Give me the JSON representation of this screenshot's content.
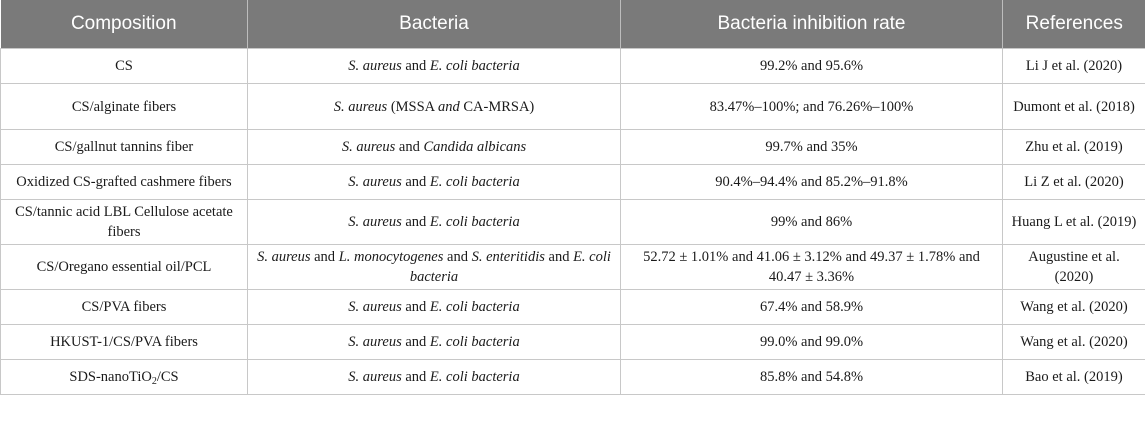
{
  "headers": [
    "Composition",
    "Bacteria",
    "Bacteria inhibition rate",
    "References"
  ],
  "rows": [
    {
      "composition": "CS",
      "bacteria": [
        {
          "t": "S. aureus",
          "i": true
        },
        {
          "t": " and ",
          "i": false
        },
        {
          "t": "E. coli bacteria",
          "i": true
        }
      ],
      "rate": "99.2% and 95.6%",
      "ref": "Li J et al. (2020)"
    },
    {
      "composition": "CS/alginate fibers",
      "bacteria": [
        {
          "t": "S. aureus",
          "i": true
        },
        {
          "t": " (MSSA ",
          "i": false
        },
        {
          "t": "and",
          "i": true
        },
        {
          "t": " CA-MRSA)",
          "i": false
        }
      ],
      "rate": "83.47%–100%; and 76.26%–100%",
      "ref": "Dumont et al. (2018)"
    },
    {
      "composition": "CS/gallnut tannins fiber",
      "bacteria": [
        {
          "t": "S. aureus",
          "i": true
        },
        {
          "t": " and ",
          "i": false
        },
        {
          "t": "Candida albicans",
          "i": true
        }
      ],
      "rate": "99.7% and 35%",
      "ref": "Zhu et al. (2019)"
    },
    {
      "composition": "Oxidized CS-grafted cashmere fibers",
      "bacteria": [
        {
          "t": "S. aureus",
          "i": true
        },
        {
          "t": " and ",
          "i": false
        },
        {
          "t": "E. coli bacteria",
          "i": true
        }
      ],
      "rate": "90.4%–94.4% and 85.2%–91.8%",
      "ref": "Li Z et al. (2020)"
    },
    {
      "composition": "CS/tannic acid LBL Cellulose acetate fibers",
      "bacteria": [
        {
          "t": "S. aureus",
          "i": true
        },
        {
          "t": " and ",
          "i": false
        },
        {
          "t": "E. coli bacteria",
          "i": true
        }
      ],
      "rate": "99% and 86%",
      "ref": "Huang L et al. (2019)"
    },
    {
      "composition": "CS/Oregano essential oil/PCL",
      "bacteria": [
        {
          "t": "S. aureus",
          "i": true
        },
        {
          "t": " and ",
          "i": false
        },
        {
          "t": "L. monocytogenes",
          "i": true
        },
        {
          "t": " and ",
          "i": false
        },
        {
          "t": "S. enteritidis",
          "i": true
        },
        {
          "t": " and ",
          "i": false
        },
        {
          "t": "E. coli bacteria",
          "i": true
        }
      ],
      "rate": "52.72 ± 1.01% and 41.06 ± 3.12% and 49.37 ± 1.78% and 40.47 ± 3.36%",
      "ref": "Augustine et al. (2020)"
    },
    {
      "composition": "CS/PVA fibers",
      "bacteria": [
        {
          "t": "S. aureus",
          "i": true
        },
        {
          "t": " and ",
          "i": false
        },
        {
          "t": "E. coli bacteria",
          "i": true
        }
      ],
      "rate": "67.4% and 58.9%",
      "ref": "Wang et al. (2020)"
    },
    {
      "composition": "HKUST-1/CS/PVA fibers",
      "bacteria": [
        {
          "t": "S. aureus",
          "i": true
        },
        {
          "t": " and ",
          "i": false
        },
        {
          "t": "E. coli bacteria",
          "i": true
        }
      ],
      "rate": "99.0% and 99.0%",
      "ref": "Wang et al. (2020)"
    },
    {
      "composition_parts": [
        "SDS-nanoTiO",
        "2",
        "/CS"
      ],
      "bacteria": [
        {
          "t": "S. aureus",
          "i": true
        },
        {
          "t": " and ",
          "i": false
        },
        {
          "t": "E. coli bacteria",
          "i": true
        }
      ],
      "rate": "85.8% and 54.8%",
      "ref": "Bao et al. (2019)"
    }
  ]
}
